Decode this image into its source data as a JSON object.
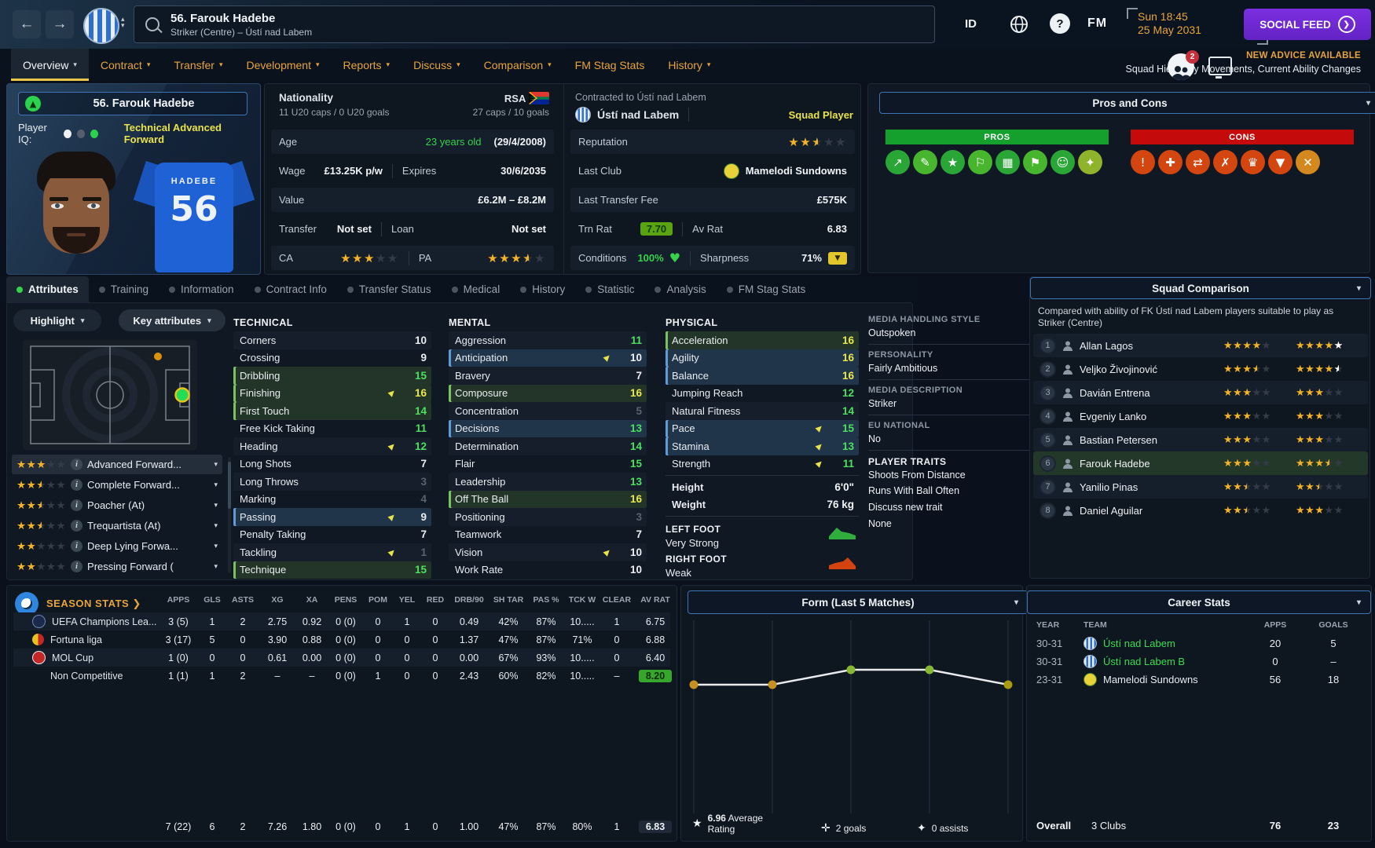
{
  "topbar": {
    "back": "←",
    "forward": "→",
    "search_name": "56. Farouk Hadebe",
    "search_sub": "Striker (Centre) – Ústí nad Labem",
    "id_label": "ID",
    "fm_label": "FM",
    "date_line1": "Sun 18:45",
    "date_line2": "25 May 2031",
    "social_feed_label": "SOCIAL FEED"
  },
  "nav": {
    "tabs": [
      {
        "label": "Overview",
        "chevron": true,
        "active": true
      },
      {
        "label": "Contract",
        "chevron": true
      },
      {
        "label": "Transfer",
        "chevron": true
      },
      {
        "label": "Development",
        "chevron": true
      },
      {
        "label": "Reports",
        "chevron": true
      },
      {
        "label": "Discuss",
        "chevron": true
      },
      {
        "label": "Comparison",
        "chevron": true
      },
      {
        "label": "FM Stag Stats",
        "chevron": false
      },
      {
        "label": "History",
        "chevron": true
      }
    ],
    "advice_title": "NEW ADVICE AVAILABLE",
    "advice_text": "Squad Hierarchy Movements, Current Ability Changes",
    "notification_count": "2"
  },
  "player": {
    "name": "56. Farouk Hadebe",
    "iq_label": "Player IQ:",
    "role_desc": "Technical Advanced Forward",
    "shirt_name": "HADEBE",
    "shirt_number": "56"
  },
  "info": {
    "nationality": {
      "label": "Nationality",
      "u20": "11 U20 caps / 0 U20 goals",
      "code": "RSA",
      "caps": "27 caps / 10 goals"
    },
    "age": {
      "label": "Age",
      "value": "23 years old",
      "dob": "(29/4/2008)"
    },
    "wage": {
      "label": "Wage",
      "value": "£13.25K p/w",
      "expires_label": "Expires",
      "expires": "30/6/2035"
    },
    "value": {
      "label": "Value",
      "value": "£6.2M – £8.2M"
    },
    "transfer": {
      "label": "Transfer",
      "value": "Not set",
      "loan_label": "Loan",
      "loan_value": "Not set"
    },
    "ca_label": "CA",
    "ca_stars": [
      "f",
      "f",
      "f",
      "e",
      "e"
    ],
    "pa_label": "PA",
    "pa_stars": [
      "f",
      "f",
      "f",
      "h",
      "e"
    ],
    "contracted_title": "Contracted to Ústí nad Labem",
    "contracted_club": "Ústí nad Labem",
    "squad_status": "Squad Player",
    "reputation_label": "Reputation",
    "reputation_stars": [
      "f",
      "f",
      "h",
      "e",
      "e"
    ],
    "last_club_label": "Last Club",
    "last_club": "Mamelodi Sundowns",
    "last_fee_label": "Last Transfer Fee",
    "last_fee": "£575K",
    "trn_rat_label": "Trn Rat",
    "trn_rat": "7.70",
    "av_rat_label": "Av Rat",
    "av_rat": "6.83",
    "conditions_label": "Conditions",
    "conditions": "100%",
    "sharpness_label": "Sharpness",
    "sharpness": "71%"
  },
  "pros_cons": {
    "title": "Pros and Cons",
    "pros_label": "PROS",
    "cons_label": "CONS",
    "pros_color": "#15a02e",
    "cons_color": "#c40a0a",
    "pros_icons": [
      {
        "name": "trend-up",
        "glyph": "↗",
        "color": "#2aa636"
      },
      {
        "name": "contract",
        "glyph": "✎",
        "color": "#47b52e"
      },
      {
        "name": "star",
        "glyph": "★",
        "color": "#2aa636"
      },
      {
        "name": "whistle",
        "glyph": "⚐",
        "color": "#47b52e"
      },
      {
        "name": "goal-net",
        "glyph": "▦",
        "color": "#2aa636"
      },
      {
        "name": "corner-flag",
        "glyph": "⚑",
        "color": "#47b52e"
      },
      {
        "name": "morale",
        "glyph": "☺",
        "color": "#2aa636"
      },
      {
        "name": "vision",
        "glyph": "✦",
        "color": "#8fb32a"
      }
    ],
    "cons_icons": [
      {
        "name": "ball-alert",
        "glyph": "!",
        "color": "#d4460f"
      },
      {
        "name": "medical",
        "glyph": "✚",
        "color": "#d4460f"
      },
      {
        "name": "transfers",
        "glyph": "⇄",
        "color": "#d4460f"
      },
      {
        "name": "injury",
        "glyph": "✗",
        "color": "#d4460f"
      },
      {
        "name": "trophy",
        "glyph": "♛",
        "color": "#d4460f"
      },
      {
        "name": "finishing-drop",
        "glyph": "▼",
        "color": "#d4460f"
      },
      {
        "name": "flask",
        "glyph": "✕",
        "color": "#d4891f"
      }
    ]
  },
  "subtabs": [
    {
      "label": "Attributes",
      "active": true
    },
    {
      "label": "Training"
    },
    {
      "label": "Information"
    },
    {
      "label": "Contract Info"
    },
    {
      "label": "Transfer Status"
    },
    {
      "label": "Medical"
    },
    {
      "label": "History"
    },
    {
      "label": "Statistic"
    },
    {
      "label": "Analysis"
    },
    {
      "label": "FM Stag Stats"
    }
  ],
  "attributes_panel": {
    "highlight_label": "Highlight",
    "key_label": "Key attributes",
    "roles": [
      {
        "stars": [
          "f",
          "f",
          "f",
          "e",
          "e"
        ],
        "label": "Advanced Forward..."
      },
      {
        "stars": [
          "f",
          "f",
          "h",
          "e",
          "e"
        ],
        "label": "Complete Forward..."
      },
      {
        "stars": [
          "f",
          "f",
          "h",
          "e",
          "e"
        ],
        "label": "Poacher (At)"
      },
      {
        "stars": [
          "f",
          "f",
          "h",
          "e",
          "e"
        ],
        "label": "Trequartista (At)"
      },
      {
        "stars": [
          "f",
          "f",
          "e",
          "e",
          "e"
        ],
        "label": "Deep Lying Forwa..."
      },
      {
        "stars": [
          "f",
          "f",
          "e",
          "e",
          "e"
        ],
        "label": "Pressing Forward ("
      }
    ],
    "sections": [
      {
        "title": "TECHNICAL",
        "rows": [
          {
            "name": "Corners",
            "value": "10",
            "color": "w"
          },
          {
            "name": "Crossing",
            "value": "9",
            "color": "w"
          },
          {
            "name": "Dribbling",
            "value": "15",
            "color": "g",
            "hl": "g"
          },
          {
            "name": "Finishing",
            "value": "16",
            "color": "y",
            "hl": "g",
            "arrow": true
          },
          {
            "name": "First Touch",
            "value": "14",
            "color": "g",
            "hl": "g"
          },
          {
            "name": "Free Kick Taking",
            "value": "11",
            "color": "g"
          },
          {
            "name": "Heading",
            "value": "12",
            "color": "g",
            "arrow": true
          },
          {
            "name": "Long Shots",
            "value": "7",
            "color": "w"
          },
          {
            "name": "Long Throws",
            "value": "3",
            "color": "d"
          },
          {
            "name": "Marking",
            "value": "4",
            "color": "d"
          },
          {
            "name": "Passing",
            "value": "9",
            "color": "w",
            "hl": "b",
            "arrow": true
          },
          {
            "name": "Penalty Taking",
            "value": "7",
            "color": "w"
          },
          {
            "name": "Tackling",
            "value": "1",
            "color": "d",
            "arrow": true
          },
          {
            "name": "Technique",
            "value": "15",
            "color": "g",
            "hl": "g"
          }
        ]
      },
      {
        "title": "MENTAL",
        "rows": [
          {
            "name": "Aggression",
            "value": "11",
            "color": "g"
          },
          {
            "name": "Anticipation",
            "value": "10",
            "color": "w",
            "hl": "b",
            "arrow": true
          },
          {
            "name": "Bravery",
            "value": "7",
            "color": "w"
          },
          {
            "name": "Composure",
            "value": "16",
            "color": "y",
            "hl": "g"
          },
          {
            "name": "Concentration",
            "value": "5",
            "color": "d"
          },
          {
            "name": "Decisions",
            "value": "13",
            "color": "g",
            "hl": "b"
          },
          {
            "name": "Determination",
            "value": "14",
            "color": "g"
          },
          {
            "name": "Flair",
            "value": "15",
            "color": "g"
          },
          {
            "name": "Leadership",
            "value": "13",
            "color": "g"
          },
          {
            "name": "Off The Ball",
            "value": "16",
            "color": "y",
            "hl": "g"
          },
          {
            "name": "Positioning",
            "value": "3",
            "color": "d"
          },
          {
            "name": "Teamwork",
            "value": "7",
            "color": "w"
          },
          {
            "name": "Vision",
            "value": "10",
            "color": "w",
            "arrow": true
          },
          {
            "name": "Work Rate",
            "value": "10",
            "color": "w"
          }
        ]
      },
      {
        "title": "PHYSICAL",
        "rows": [
          {
            "name": "Acceleration",
            "value": "16",
            "color": "y",
            "hl": "g"
          },
          {
            "name": "Agility",
            "value": "16",
            "color": "y",
            "hl": "b"
          },
          {
            "name": "Balance",
            "value": "16",
            "color": "y",
            "hl": "b"
          },
          {
            "name": "Jumping Reach",
            "value": "12",
            "color": "g"
          },
          {
            "name": "Natural Fitness",
            "value": "14",
            "color": "g"
          },
          {
            "name": "Pace",
            "value": "15",
            "color": "g",
            "hl": "b",
            "arrow": true
          },
          {
            "name": "Stamina",
            "value": "13",
            "color": "g",
            "hl": "b",
            "arrow": true
          },
          {
            "name": "Strength",
            "value": "11",
            "color": "g",
            "arrow": true
          }
        ]
      }
    ],
    "height_label": "Height",
    "height": "6'0\"",
    "weight_label": "Weight",
    "weight": "76 kg",
    "left_foot_label": "LEFT FOOT",
    "left_foot": "Very Strong",
    "right_foot_label": "RIGHT FOOT",
    "right_foot": "Weak",
    "media": [
      {
        "label": "MEDIA HANDLING STYLE",
        "value": "Outspoken"
      },
      {
        "label": "PERSONALITY",
        "value": "Fairly Ambitious"
      },
      {
        "label": "MEDIA DESCRIPTION",
        "value": "Striker"
      },
      {
        "label": "EU NATIONAL",
        "value": "No"
      }
    ],
    "traits_title": "PLAYER TRAITS",
    "traits": [
      "Shoots From Distance",
      "Runs With Ball Often"
    ],
    "discuss_label": "Discuss new trait",
    "none_label": "None"
  },
  "squad_comparison": {
    "title": "Squad Comparison",
    "desc": "Compared with ability of FK Ústí nad Labem players suitable to play as Striker (Centre)",
    "rows": [
      {
        "num": "1",
        "name": "Allan Lagos",
        "current": [
          "f",
          "f",
          "f",
          "f",
          "e"
        ],
        "potential": [
          "f",
          "f",
          "f",
          "f",
          "fw"
        ]
      },
      {
        "num": "2",
        "name": "Veljko Živojinović",
        "current": [
          "f",
          "f",
          "f",
          "h",
          "e"
        ],
        "potential": [
          "f",
          "f",
          "f",
          "f",
          "hw"
        ]
      },
      {
        "num": "3",
        "name": "Davián Entrena",
        "current": [
          "f",
          "f",
          "f",
          "e",
          "e"
        ],
        "potential": [
          "f",
          "f",
          "f",
          "e",
          "e"
        ]
      },
      {
        "num": "4",
        "name": "Evgeniy Lanko",
        "current": [
          "f",
          "f",
          "f",
          "e",
          "e"
        ],
        "potential": [
          "f",
          "f",
          "f",
          "e",
          "e"
        ]
      },
      {
        "num": "5",
        "name": "Bastian Petersen",
        "current": [
          "f",
          "f",
          "f",
          "e",
          "e"
        ],
        "potential": [
          "f",
          "f",
          "f",
          "e",
          "e"
        ]
      },
      {
        "num": "6",
        "name": "Farouk Hadebe",
        "current": [
          "f",
          "f",
          "f",
          "e",
          "e"
        ],
        "potential": [
          "f",
          "f",
          "f",
          "h",
          "e"
        ],
        "me": true
      },
      {
        "num": "7",
        "name": "Yanilio Pinas",
        "current": [
          "f",
          "f",
          "h",
          "e",
          "e"
        ],
        "potential": [
          "f",
          "f",
          "h",
          "e",
          "e"
        ]
      },
      {
        "num": "8",
        "name": "Daniel Aguilar",
        "current": [
          "f",
          "f",
          "h",
          "e",
          "e"
        ],
        "potential": [
          "f",
          "f",
          "f",
          "e",
          "e"
        ]
      }
    ]
  },
  "season_stats": {
    "title": "SEASON STATS",
    "title_chevron": "❯",
    "columns": [
      "APPS",
      "GLS",
      "ASTS",
      "XG",
      "XA",
      "PENS",
      "POM",
      "YEL",
      "RED",
      "DRB/90",
      "SH TAR",
      "PAS %",
      "TCK W",
      "CLEAR",
      "AV RAT"
    ],
    "rows": [
      {
        "name": "UEFA Champions Lea...",
        "badge": "ucl",
        "cells": [
          "3 (5)",
          "1",
          "2",
          "2.75",
          "0.92",
          "0 (0)",
          "0",
          "1",
          "0",
          "0.49",
          "42%",
          "87%",
          "10.....",
          "1"
        ],
        "av": "6.75",
        "av_style": "plain"
      },
      {
        "name": "Fortuna liga",
        "badge": "fortuna",
        "cells": [
          "3 (17)",
          "5",
          "0",
          "3.90",
          "0.88",
          "0 (0)",
          "0",
          "0",
          "0",
          "1.37",
          "47%",
          "87%",
          "71%",
          "0"
        ],
        "av": "6.88",
        "av_style": "plain"
      },
      {
        "name": "MOL Cup",
        "badge": "mol",
        "cells": [
          "1 (0)",
          "0",
          "0",
          "0.61",
          "0.00",
          "0 (0)",
          "0",
          "0",
          "0",
          "0.00",
          "67%",
          "93%",
          "10.....",
          "0"
        ],
        "av": "6.40",
        "av_style": "plain"
      },
      {
        "name": "Non Competitive",
        "badge": "none",
        "cells": [
          "1 (1)",
          "1",
          "2",
          "–",
          "–",
          "0 (0)",
          "1",
          "0",
          "0",
          "2.43",
          "60%",
          "82%",
          "10.....",
          "–"
        ],
        "av": "8.20",
        "av_style": "green"
      }
    ],
    "totals": {
      "cells": [
        "7 (22)",
        "6",
        "2",
        "7.26",
        "1.80",
        "0 (0)",
        "0",
        "1",
        "0",
        "1.00",
        "47%",
        "87%",
        "80%",
        "1"
      ],
      "av": "6.83",
      "av_style": "dark"
    }
  },
  "form": {
    "title": "Form (Last 5 Matches)",
    "avg_value": "6.96",
    "avg_label": "Average Rating",
    "goals_label": "2 goals",
    "assists_label": "0 assists",
    "chart_data": {
      "type": "line",
      "x": [
        1,
        2,
        3,
        4,
        5
      ],
      "ratings": [
        6.8,
        6.8,
        7.2,
        7.2,
        6.8
      ],
      "average_rating": 6.96,
      "goals": 2,
      "assists": 0,
      "point_colors": [
        "#c79023",
        "#c79023",
        "#86b833",
        "#86b833",
        "#a99a10"
      ],
      "line_color": "#e9ebee",
      "grid": true,
      "legend": false
    }
  },
  "career_stats": {
    "title": "Career Stats",
    "columns": [
      "YEAR",
      "TEAM",
      "APPS",
      "GOALS"
    ],
    "rows": [
      {
        "year": "30-31",
        "team": "Ústí nad Labem",
        "badge": "usti",
        "green": true,
        "apps": "20",
        "goals": "5"
      },
      {
        "year": "30-31",
        "team": "Ústí nad Labem B",
        "badge": "usti",
        "green": true,
        "apps": "0",
        "goals": "–"
      },
      {
        "year": "23-31",
        "team": "Mamelodi Sundowns",
        "badge": "mamelodi",
        "green": false,
        "apps": "56",
        "goals": "18"
      }
    ],
    "overall_label": "Overall",
    "overall_clubs": "3 Clubs",
    "overall_apps": "76",
    "overall_goals": "23"
  }
}
